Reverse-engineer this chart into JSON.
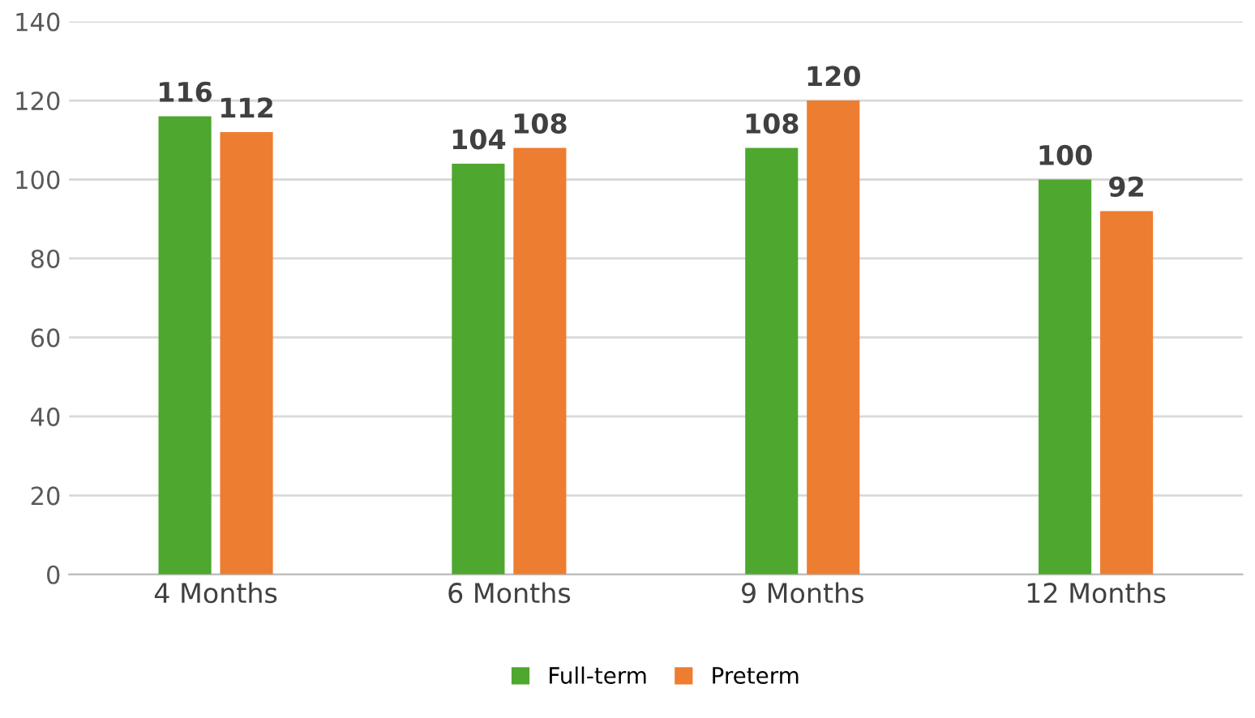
{
  "chart_data": {
    "type": "bar",
    "categories": [
      "4 Months",
      "6 Months",
      "9 Months",
      "12 Months"
    ],
    "series": [
      {
        "name": "Full-term",
        "color": "#4ea72e",
        "values": [
          116,
          104,
          108,
          100
        ]
      },
      {
        "name": "Preterm",
        "color": "#ed7d31",
        "values": [
          112,
          108,
          120,
          92
        ]
      }
    ],
    "ylim": [
      0,
      140
    ],
    "yticks": [
      0,
      20,
      40,
      60,
      80,
      100,
      120,
      140
    ],
    "grid": "y",
    "legend": "bottom",
    "data_labels": true
  }
}
